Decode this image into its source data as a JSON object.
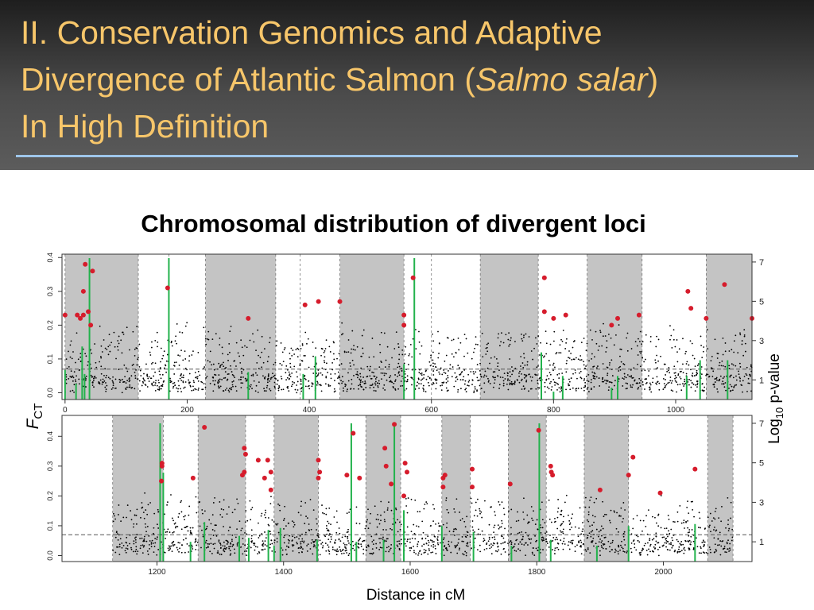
{
  "slide": {
    "title_line1": "II. Conservation Genomics and Adaptive",
    "title_line2_pre": "Divergence of Atlantic Salmon (",
    "title_italic": "Salmo salar",
    "title_line2_post": ")",
    "title_line3": "In High Definition",
    "subtitle": "Chromosomal distribution of divergent loci",
    "accent_color": "#f7c66a",
    "rule_color": "#9ec6ea"
  },
  "chart_data": {
    "type": "scatter",
    "xlabel": "Distance in cM",
    "ylabel_left_main": "F",
    "ylabel_left_sub": "CT",
    "ylabel_right_main": "Log",
    "ylabel_right_sub": "10",
    "ylabel_right_rest": " p-value",
    "threshold_fct": 0.07,
    "colors": {
      "points": "#000000",
      "outliers": "#d61c2c",
      "significance_bars": "#22b24c",
      "shading": "#c4c4c4"
    },
    "panels": [
      {
        "xlim": [
          -5,
          1125
        ],
        "ylim_left": [
          -0.02,
          0.41
        ],
        "ylim_right": [
          0,
          7.4
        ],
        "x_ticks": [
          0,
          200,
          400,
          600,
          800,
          1000
        ],
        "y_ticks_left": [
          0.0,
          0.1,
          0.2,
          0.3,
          0.4
        ],
        "y_ticks_right": [
          1,
          3,
          5,
          7
        ],
        "shaded_bands": [
          [
            0,
            120
          ],
          [
            230,
            345
          ],
          [
            450,
            555
          ],
          [
            680,
            775
          ],
          [
            855,
            945
          ],
          [
            1050,
            1125
          ]
        ],
        "chromosome_boundaries": [
          0,
          120,
          170,
          230,
          345,
          385,
          450,
          555,
          600,
          680,
          775,
          855,
          945,
          1050,
          1125
        ],
        "outliers": [
          [
            0,
            0.23
          ],
          [
            20,
            0.23
          ],
          [
            25,
            0.22
          ],
          [
            30,
            0.23
          ],
          [
            38,
            0.24
          ],
          [
            30,
            0.3
          ],
          [
            33,
            0.38
          ],
          [
            45,
            0.36
          ],
          [
            42,
            0.2
          ],
          [
            168,
            0.31
          ],
          [
            300,
            0.22
          ],
          [
            393,
            0.26
          ],
          [
            415,
            0.27
          ],
          [
            450,
            0.27
          ],
          [
            555,
            0.23
          ],
          [
            555,
            0.2
          ],
          [
            570,
            0.34
          ],
          [
            785,
            0.34
          ],
          [
            785,
            0.24
          ],
          [
            800,
            0.22
          ],
          [
            820,
            0.23
          ],
          [
            895,
            0.2
          ],
          [
            905,
            0.22
          ],
          [
            940,
            0.23
          ],
          [
            1020,
            0.3
          ],
          [
            1025,
            0.25
          ],
          [
            1050,
            0.22
          ],
          [
            1080,
            0.32
          ],
          [
            1125,
            0.22
          ]
        ],
        "significance_bars": [
          [
            0,
            1.5
          ],
          [
            18,
            0.8
          ],
          [
            28,
            2.7
          ],
          [
            32,
            1.3
          ],
          [
            40,
            7.2
          ],
          [
            170,
            7.2
          ],
          [
            300,
            1.4
          ],
          [
            390,
            1.3
          ],
          [
            410,
            2.2
          ],
          [
            555,
            1.8
          ],
          [
            572,
            7.2
          ],
          [
            780,
            2.4
          ],
          [
            800,
            0.4
          ],
          [
            815,
            1.2
          ],
          [
            895,
            0.6
          ],
          [
            905,
            1.2
          ],
          [
            1018,
            1.2
          ],
          [
            1040,
            2.0
          ],
          [
            1085,
            2.0
          ]
        ]
      },
      {
        "xlim": [
          1050,
          2140
        ],
        "ylim_left": [
          -0.02,
          0.47
        ],
        "ylim_right": [
          0,
          7.4
        ],
        "x_ticks": [
          1200,
          1400,
          1600,
          1800,
          2000
        ],
        "y_ticks_left": [
          0.0,
          0.1,
          0.2,
          0.3,
          0.4
        ],
        "y_ticks_right": [
          1,
          3,
          5,
          7
        ],
        "shaded_bands": [
          [
            1130,
            1210
          ],
          [
            1265,
            1340
          ],
          [
            1385,
            1455
          ],
          [
            1530,
            1585
          ],
          [
            1650,
            1695
          ],
          [
            1755,
            1815
          ],
          [
            1875,
            1945
          ],
          [
            2070,
            2110
          ]
        ],
        "chromosome_boundaries": [
          1130,
          1210,
          1265,
          1340,
          1385,
          1455,
          1530,
          1585,
          1650,
          1695,
          1755,
          1815,
          1875,
          1945,
          2070,
          2110
        ],
        "outliers": [
          [
            1208,
            0.31
          ],
          [
            1208,
            0.3
          ],
          [
            1207,
            0.25
          ],
          [
            1257,
            0.26
          ],
          [
            1275,
            0.43
          ],
          [
            1338,
            0.36
          ],
          [
            1340,
            0.34
          ],
          [
            1338,
            0.28
          ],
          [
            1335,
            0.27
          ],
          [
            1360,
            0.32
          ],
          [
            1370,
            0.26
          ],
          [
            1375,
            0.32
          ],
          [
            1380,
            0.22
          ],
          [
            1380,
            0.28
          ],
          [
            1455,
            0.32
          ],
          [
            1457,
            0.28
          ],
          [
            1455,
            0.26
          ],
          [
            1500,
            0.27
          ],
          [
            1510,
            0.41
          ],
          [
            1520,
            0.26
          ],
          [
            1560,
            0.36
          ],
          [
            1562,
            0.3
          ],
          [
            1570,
            0.24
          ],
          [
            1575,
            0.44
          ],
          [
            1592,
            0.31
          ],
          [
            1595,
            0.28
          ],
          [
            1590,
            0.2
          ],
          [
            1652,
            0.26
          ],
          [
            1655,
            0.27
          ],
          [
            1652,
            0.23
          ],
          [
            1698,
            0.29
          ],
          [
            1698,
            0.23
          ],
          [
            1758,
            0.24
          ],
          [
            1803,
            0.42
          ],
          [
            1822,
            0.3
          ],
          [
            1823,
            0.28
          ],
          [
            1825,
            0.27
          ],
          [
            1900,
            0.22
          ],
          [
            1945,
            0.27
          ],
          [
            1952,
            0.33
          ],
          [
            1995,
            0.21
          ],
          [
            2050,
            0.29
          ]
        ],
        "significance_bars": [
          [
            1205,
            7.0
          ],
          [
            1210,
            4.5
          ],
          [
            1253,
            1.0
          ],
          [
            1275,
            2.0
          ],
          [
            1330,
            1.3
          ],
          [
            1345,
            1.2
          ],
          [
            1376,
            1.6
          ],
          [
            1385,
            0.8
          ],
          [
            1395,
            1.7
          ],
          [
            1453,
            1.1
          ],
          [
            1507,
            7.0
          ],
          [
            1515,
            1.0
          ],
          [
            1558,
            1.1
          ],
          [
            1575,
            7.0
          ],
          [
            1590,
            2.6
          ],
          [
            1650,
            1.8
          ],
          [
            1700,
            1.5
          ],
          [
            1760,
            0.8
          ],
          [
            1804,
            7.0
          ],
          [
            1822,
            1.1
          ],
          [
            1895,
            0.8
          ],
          [
            1945,
            1.8
          ],
          [
            2050,
            1.9
          ]
        ]
      }
    ]
  }
}
